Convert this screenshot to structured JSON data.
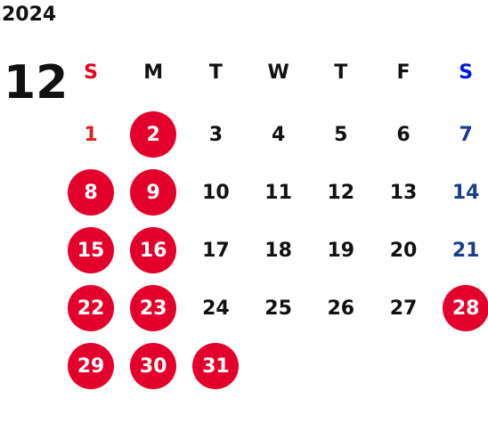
{
  "calendar": {
    "year": "2024",
    "month": "12",
    "weekdays": [
      "S",
      "M",
      "T",
      "W",
      "T",
      "F",
      "S"
    ],
    "colors": {
      "sunday_header": "#e8001c",
      "saturday_header": "#0018e0",
      "sunday_day": "#e0201c",
      "saturday_day": "#1a3e8c",
      "weekday": "#111111",
      "marked_fill": "#e3002b",
      "marked_text": "#ffffff"
    },
    "weeks": [
      [
        {
          "day": "1",
          "marked": false
        },
        {
          "day": "2",
          "marked": true
        },
        {
          "day": "3",
          "marked": false
        },
        {
          "day": "4",
          "marked": false
        },
        {
          "day": "5",
          "marked": false
        },
        {
          "day": "6",
          "marked": false
        },
        {
          "day": "7",
          "marked": false
        }
      ],
      [
        {
          "day": "8",
          "marked": true
        },
        {
          "day": "9",
          "marked": true
        },
        {
          "day": "10",
          "marked": false
        },
        {
          "day": "11",
          "marked": false
        },
        {
          "day": "12",
          "marked": false
        },
        {
          "day": "13",
          "marked": false
        },
        {
          "day": "14",
          "marked": false
        }
      ],
      [
        {
          "day": "15",
          "marked": true
        },
        {
          "day": "16",
          "marked": true
        },
        {
          "day": "17",
          "marked": false
        },
        {
          "day": "18",
          "marked": false
        },
        {
          "day": "19",
          "marked": false
        },
        {
          "day": "20",
          "marked": false
        },
        {
          "day": "21",
          "marked": false
        }
      ],
      [
        {
          "day": "22",
          "marked": true
        },
        {
          "day": "23",
          "marked": true
        },
        {
          "day": "24",
          "marked": false
        },
        {
          "day": "25",
          "marked": false
        },
        {
          "day": "26",
          "marked": false
        },
        {
          "day": "27",
          "marked": false
        },
        {
          "day": "28",
          "marked": true
        }
      ],
      [
        {
          "day": "29",
          "marked": true
        },
        {
          "day": "30",
          "marked": true
        },
        {
          "day": "31",
          "marked": true
        },
        null,
        null,
        null,
        null
      ]
    ]
  }
}
